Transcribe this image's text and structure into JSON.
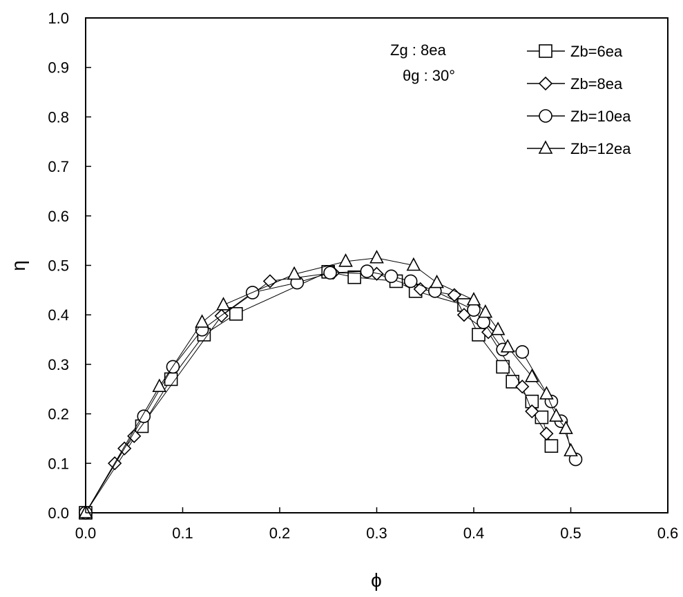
{
  "chart_data": {
    "type": "scatter",
    "xlabel": "ϕ",
    "ylabel": "η",
    "xlim": [
      0.0,
      0.6
    ],
    "ylim": [
      0.0,
      1.0
    ],
    "xticks": [
      "0.0",
      "0.1",
      "0.2",
      "0.3",
      "0.4",
      "0.5",
      "0.6"
    ],
    "yticks": [
      "0.0",
      "0.1",
      "0.2",
      "0.3",
      "0.4",
      "0.5",
      "0.6",
      "0.7",
      "0.8",
      "0.9",
      "1.0"
    ],
    "grid": false,
    "legend_position": "top-right",
    "annotations": [
      "Zg :  8ea",
      "θg : 30°"
    ],
    "series": [
      {
        "name": "Zb=6ea",
        "marker": "square",
        "points": [
          [
            0.0,
            0.0
          ],
          [
            0.058,
            0.175
          ],
          [
            0.088,
            0.27
          ],
          [
            0.122,
            0.36
          ],
          [
            0.155,
            0.402
          ],
          [
            0.25,
            0.487
          ],
          [
            0.277,
            0.476
          ],
          [
            0.32,
            0.468
          ],
          [
            0.34,
            0.448
          ],
          [
            0.39,
            0.42
          ],
          [
            0.405,
            0.36
          ],
          [
            0.43,
            0.295
          ],
          [
            0.44,
            0.265
          ],
          [
            0.46,
            0.225
          ],
          [
            0.47,
            0.193
          ],
          [
            0.48,
            0.135
          ]
        ]
      },
      {
        "name": "Zb=8ea",
        "marker": "diamond",
        "points": [
          [
            0.0,
            0.0
          ],
          [
            0.03,
            0.1
          ],
          [
            0.04,
            0.13
          ],
          [
            0.05,
            0.155
          ],
          [
            0.14,
            0.398
          ],
          [
            0.19,
            0.468
          ],
          [
            0.255,
            0.485
          ],
          [
            0.3,
            0.483
          ],
          [
            0.345,
            0.452
          ],
          [
            0.38,
            0.44
          ],
          [
            0.39,
            0.4
          ],
          [
            0.415,
            0.365
          ],
          [
            0.45,
            0.255
          ],
          [
            0.46,
            0.205
          ],
          [
            0.475,
            0.16
          ]
        ]
      },
      {
        "name": "Zb=10ea",
        "marker": "circle",
        "points": [
          [
            0.0,
            0.0
          ],
          [
            0.06,
            0.195
          ],
          [
            0.09,
            0.295
          ],
          [
            0.12,
            0.37
          ],
          [
            0.172,
            0.445
          ],
          [
            0.218,
            0.465
          ],
          [
            0.252,
            0.485
          ],
          [
            0.29,
            0.488
          ],
          [
            0.315,
            0.478
          ],
          [
            0.335,
            0.468
          ],
          [
            0.36,
            0.448
          ],
          [
            0.4,
            0.41
          ],
          [
            0.41,
            0.385
          ],
          [
            0.43,
            0.33
          ],
          [
            0.45,
            0.325
          ],
          [
            0.48,
            0.225
          ],
          [
            0.49,
            0.185
          ],
          [
            0.505,
            0.108
          ]
        ]
      },
      {
        "name": "Zb=12ea",
        "marker": "triangle",
        "points": [
          [
            0.0,
            0.0
          ],
          [
            0.076,
            0.255
          ],
          [
            0.12,
            0.385
          ],
          [
            0.142,
            0.42
          ],
          [
            0.215,
            0.482
          ],
          [
            0.268,
            0.508
          ],
          [
            0.3,
            0.515
          ],
          [
            0.338,
            0.5
          ],
          [
            0.362,
            0.465
          ],
          [
            0.4,
            0.43
          ],
          [
            0.412,
            0.405
          ],
          [
            0.425,
            0.37
          ],
          [
            0.435,
            0.335
          ],
          [
            0.46,
            0.275
          ],
          [
            0.475,
            0.24
          ],
          [
            0.485,
            0.195
          ],
          [
            0.495,
            0.17
          ],
          [
            0.5,
            0.125
          ]
        ]
      }
    ]
  }
}
